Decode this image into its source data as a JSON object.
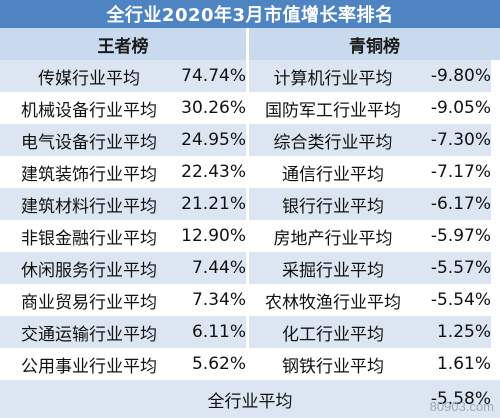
{
  "title": "全行业2020年3月市值增长率排名",
  "headers": {
    "left": "王者榜",
    "right": "青铜榜"
  },
  "rows": [
    {
      "left_name": "传媒行业平均",
      "left_value": "74.74%",
      "right_name": "计算机行业平均",
      "right_value": "-9.80%"
    },
    {
      "left_name": "机械设备行业平均",
      "left_value": "30.26%",
      "right_name": "国防军工行业平均",
      "right_value": "-9.05%"
    },
    {
      "left_name": "电气设备行业平均",
      "left_value": "24.95%",
      "right_name": "综合类行业平均",
      "right_value": "-7.30%"
    },
    {
      "left_name": "建筑装饰行业平均",
      "left_value": "22.43%",
      "right_name": "通信行业平均",
      "right_value": "-7.17%"
    },
    {
      "left_name": "建筑材料行业平均",
      "left_value": "21.21%",
      "right_name": "银行行业平均",
      "right_value": "-6.17%"
    },
    {
      "left_name": "非银金融行业平均",
      "left_value": "12.90%",
      "right_name": "房地产行业平均",
      "right_value": "-5.97%"
    },
    {
      "left_name": "休闲服务行业平均",
      "left_value": "7.44%",
      "right_name": "采掘行业平均",
      "right_value": "-5.57%"
    },
    {
      "left_name": "商业贸易行业平均",
      "left_value": "7.34%",
      "right_name": "农林牧渔行业平均",
      "right_value": "-5.54%"
    },
    {
      "left_name": "交通运输行业平均",
      "left_value": "6.11%",
      "right_name": "化工行业平均",
      "right_value": "1.25%"
    },
    {
      "left_name": "公用事业行业平均",
      "left_value": "5.62%",
      "right_name": "钢铁行业平均",
      "right_value": "1.61%"
    }
  ],
  "total": {
    "label": "全行业平均",
    "value": "-5.58%"
  },
  "watermark": "80903.com"
}
